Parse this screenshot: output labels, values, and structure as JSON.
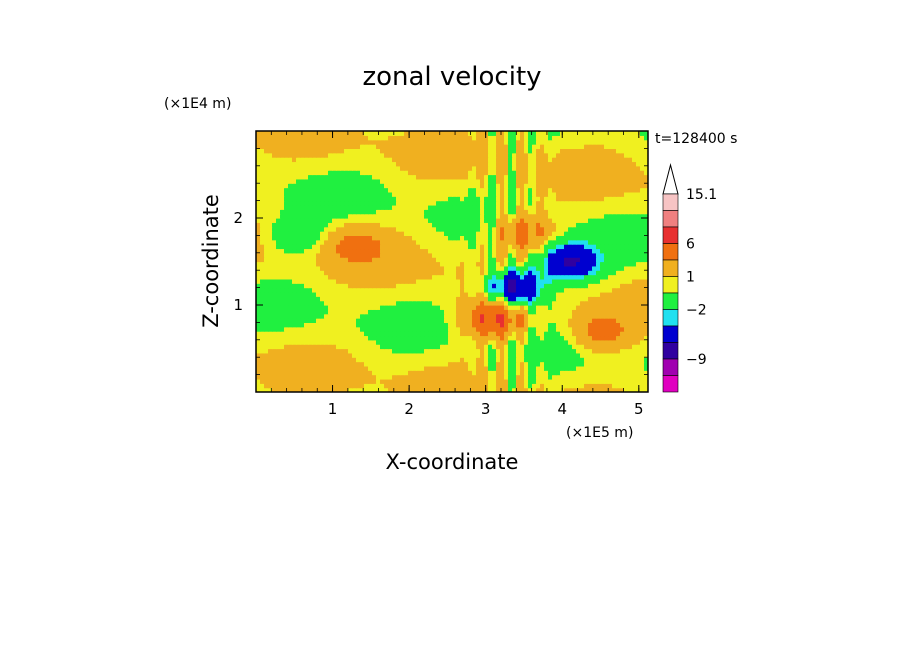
{
  "chart_data": {
    "type": "heatmap",
    "title": "zonal velocity",
    "xlabel": "X-coordinate",
    "ylabel": "Z-coordinate",
    "x_unit": "(×1E5 m)",
    "y_unit": "(×1E4 m)",
    "time_label": "t=128400 s",
    "xlim": [
      0,
      5.12
    ],
    "ylim": [
      0,
      3.0
    ],
    "x_ticks": [
      {
        "value": 1,
        "label": "1"
      },
      {
        "value": 2,
        "label": "2"
      },
      {
        "value": 3,
        "label": "3"
      },
      {
        "value": 4,
        "label": "4"
      },
      {
        "value": 5,
        "label": "5"
      }
    ],
    "y_ticks": [
      {
        "value": 1,
        "label": "1"
      },
      {
        "value": 2,
        "label": "2"
      }
    ],
    "colorbar": {
      "levels_top_to_bottom": [
        15.1,
        12,
        9,
        6,
        3,
        1,
        0,
        -2,
        -3,
        -6,
        -9,
        -12,
        -15
      ],
      "labels": [
        {
          "value": 15.1,
          "label": "15.1"
        },
        {
          "value": 6,
          "label": "6"
        },
        {
          "value": 1,
          "label": "1"
        },
        {
          "value": -2,
          "label": "−2"
        },
        {
          "value": -9,
          "label": "−9"
        }
      ],
      "colors_top_to_bottom": [
        "#f7c4c4",
        "#f08080",
        "#e83030",
        "#f07010",
        "#f0b020",
        "#f0f020",
        "#20f040",
        "#20e0f0",
        "#0000d0",
        "#3000a0",
        "#a000b0",
        "#e000c0"
      ]
    },
    "field_features": [
      {
        "x": 3.4,
        "z": 1.2,
        "u": -8
      },
      {
        "x": 3.1,
        "z": 0.85,
        "u": 6
      },
      {
        "x": 4.1,
        "z": 1.5,
        "u": -7
      },
      {
        "x": 3.5,
        "z": 1.85,
        "u": 4
      },
      {
        "x": 1.3,
        "z": 1.7,
        "u": 3
      },
      {
        "x": 0.5,
        "z": 1.8,
        "u": -2.5
      },
      {
        "x": 4.5,
        "z": 0.7,
        "u": 4
      }
    ]
  }
}
